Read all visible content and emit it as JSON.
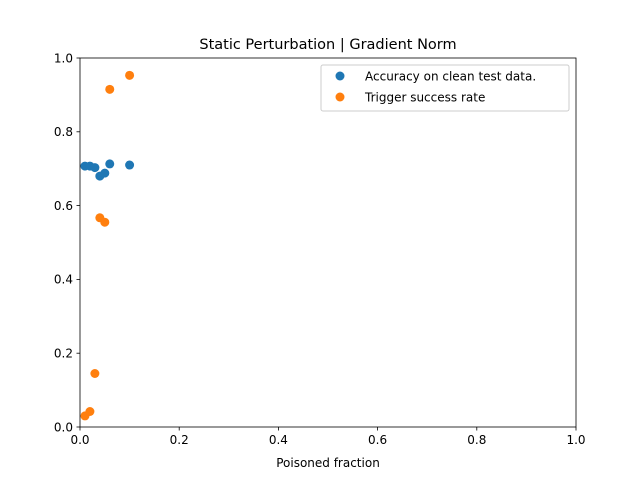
{
  "chart_data": {
    "type": "scatter",
    "title": "Static Perturbation | Gradient Norm",
    "xlabel": "Poisoned fraction",
    "ylabel": "",
    "xlim": [
      0,
      1
    ],
    "ylim": [
      0,
      1
    ],
    "x_ticks": [
      "0.0",
      "0.2",
      "0.4",
      "0.6",
      "0.8",
      "1.0"
    ],
    "y_ticks": [
      "0.0",
      "0.2",
      "0.4",
      "0.6",
      "0.8",
      "1.0"
    ],
    "x_tick_values": [
      0,
      0.2,
      0.4,
      0.6,
      0.8,
      1.0
    ],
    "y_tick_values": [
      0,
      0.2,
      0.4,
      0.6,
      0.8,
      1.0
    ],
    "grid": false,
    "legend_position": "top-right",
    "series": [
      {
        "name": "Accuracy on clean test data.",
        "color": "#1f77b4",
        "points": [
          {
            "x": 0.01,
            "y": 0.707
          },
          {
            "x": 0.02,
            "y": 0.707
          },
          {
            "x": 0.03,
            "y": 0.703
          },
          {
            "x": 0.04,
            "y": 0.68
          },
          {
            "x": 0.05,
            "y": 0.688
          },
          {
            "x": 0.06,
            "y": 0.713
          },
          {
            "x": 0.1,
            "y": 0.71
          }
        ]
      },
      {
        "name": "Trigger success rate",
        "color": "#ff7f0e",
        "points": [
          {
            "x": 0.01,
            "y": 0.03
          },
          {
            "x": 0.02,
            "y": 0.042
          },
          {
            "x": 0.03,
            "y": 0.145
          },
          {
            "x": 0.04,
            "y": 0.567
          },
          {
            "x": 0.05,
            "y": 0.555
          },
          {
            "x": 0.06,
            "y": 0.915
          },
          {
            "x": 0.1,
            "y": 0.953
          }
        ]
      }
    ]
  }
}
